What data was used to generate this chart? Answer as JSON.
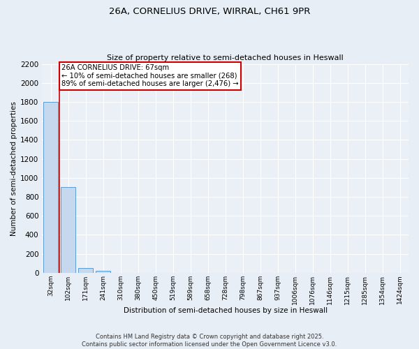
{
  "title_line1": "26A, CORNELIUS DRIVE, WIRRAL, CH61 9PR",
  "title_line2": "Size of property relative to semi-detached houses in Heswall",
  "xlabel": "Distribution of semi-detached houses by size in Heswall",
  "ylabel": "Number of semi-detached properties",
  "bar_labels": [
    "32sqm",
    "102sqm",
    "171sqm",
    "241sqm",
    "310sqm",
    "380sqm",
    "450sqm",
    "519sqm",
    "589sqm",
    "658sqm",
    "728sqm",
    "798sqm",
    "867sqm",
    "937sqm",
    "1006sqm",
    "1076sqm",
    "1146sqm",
    "1215sqm",
    "1285sqm",
    "1354sqm",
    "1424sqm"
  ],
  "bar_values": [
    1800,
    900,
    50,
    20,
    0,
    0,
    0,
    0,
    0,
    0,
    0,
    0,
    0,
    0,
    0,
    0,
    0,
    0,
    0,
    0,
    0
  ],
  "bar_color": "#c5d8ed",
  "bar_edge_color": "#5b9bd5",
  "ylim": [
    0,
    2200
  ],
  "yticks": [
    0,
    200,
    400,
    600,
    800,
    1000,
    1200,
    1400,
    1600,
    1800,
    2000,
    2200
  ],
  "property_line_x": 0.5,
  "annotation_title": "26A CORNELIUS DRIVE: 67sqm",
  "annotation_line1": "← 10% of semi-detached houses are smaller (268)",
  "annotation_line2": "89% of semi-detached houses are larger (2,476) →",
  "annotation_box_color": "#ffffff",
  "annotation_box_edge": "#cc0000",
  "property_line_color": "#cc0000",
  "footer_line1": "Contains HM Land Registry data © Crown copyright and database right 2025.",
  "footer_line2": "Contains public sector information licensed under the Open Government Licence v3.0.",
  "bg_color": "#e8eef5",
  "plot_bg_color": "#eaf0f6",
  "grid_color": "#ffffff"
}
